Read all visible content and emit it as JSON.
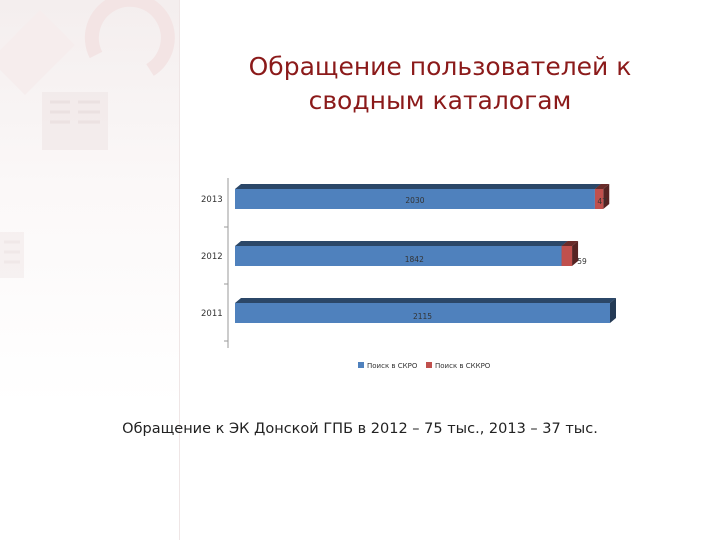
{
  "slide": {
    "title": "Обращение пользователей к сводным каталогам",
    "footnote": "Обращение к ЭК Донской ГПБ  в 2012 – 75 тыс., 2013 – 37 тыс."
  },
  "chart_data": {
    "type": "bar",
    "orientation": "horizontal",
    "stacked": true,
    "categories": [
      "2013",
      "2012",
      "2011"
    ],
    "series": [
      {
        "name": "Поиск в СКРО",
        "color": "#4f81bd",
        "values": [
          2030,
          1842,
          2115
        ]
      },
      {
        "name": "Поиск в СККРО",
        "color": "#c0504d",
        "values": [
          47,
          59,
          null
        ]
      }
    ],
    "data_labels": [
      [
        "2030",
        "1842",
        "2115"
      ],
      [
        "47",
        "59",
        ""
      ]
    ],
    "legend_position": "bottom"
  }
}
